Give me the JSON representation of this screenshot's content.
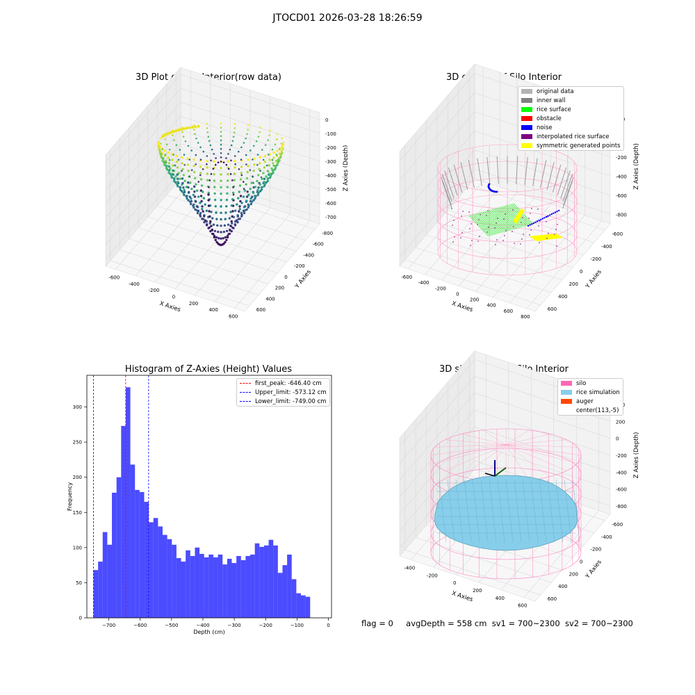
{
  "page_title": "JTOCD01 2026-03-28 18:26:59",
  "footer": {
    "flag": "flag = 0",
    "avg_depth": "avgDepth = 558 cm",
    "sv1": "sv1 = 700~2300",
    "sv2": "sv2 = 700~2300"
  },
  "chart_data": [
    {
      "type": "scatter",
      "title": "3D Plot of Silo Interior(row data)",
      "xlabel": "X Axies",
      "ylabel": "Y Axies",
      "zlabel": "Z Axies (Depth)",
      "x_ticks": [
        "-600",
        "-400",
        "-200",
        "0",
        "200",
        "400",
        "600"
      ],
      "y_ticks": [
        "-800",
        "-600",
        "-400",
        "-200",
        "0",
        "200",
        "400",
        "600"
      ],
      "z_ticks": [
        "0",
        "-100",
        "-200",
        "-300",
        "-400",
        "-500",
        "-600",
        "-700"
      ],
      "colormap": "viridis",
      "grid": true
    },
    {
      "type": "scatter",
      "title": "3D classify of Silo Interior",
      "xlabel": "X Axies",
      "ylabel": "Y Axies",
      "zlabel": "Z Axies (Depth)",
      "x_ticks": [
        "-600",
        "-400",
        "-200",
        "0",
        "200",
        "400",
        "600",
        "800"
      ],
      "y_ticks": [
        "-600",
        "-400",
        "-200",
        "0",
        "200",
        "400",
        "600"
      ],
      "z_ticks": [
        "200",
        "0",
        "-200",
        "-400",
        "-600",
        "-800"
      ],
      "legend_position": "top-right",
      "legend": [
        {
          "label": "original data",
          "color": "#b3b3b3"
        },
        {
          "label": "inner wall",
          "color": "#808080"
        },
        {
          "label": "rice surface",
          "color": "#00ff00"
        },
        {
          "label": "obstacle",
          "color": "#ff0000"
        },
        {
          "label": "noise",
          "color": "#0000ff"
        },
        {
          "label": "interpolated rice surface",
          "color": "#800080"
        },
        {
          "label": "symmetric generated points",
          "color": "#ffff00"
        }
      ],
      "grid": true
    },
    {
      "type": "bar",
      "title": "Histogram of Z-Axies (Height) Values",
      "xlabel": "Depth (cm)",
      "ylabel": "Frequency",
      "xlim": [
        -770,
        10
      ],
      "ylim": [
        0,
        345
      ],
      "x_ticks": [
        -700,
        -600,
        -500,
        -400,
        -300,
        -200,
        -100,
        0
      ],
      "y_ticks": [
        0,
        50,
        100,
        150,
        200,
        250,
        300
      ],
      "bar_color": "#0000ff",
      "bins": {
        "start": -749,
        "width": 14.7,
        "counts": [
          68,
          80,
          122,
          104,
          178,
          200,
          273,
          328,
          218,
          182,
          179,
          165,
          136,
          142,
          130,
          118,
          112,
          104,
          85,
          80,
          96,
          88,
          100,
          91,
          86,
          90,
          86,
          90,
          76,
          84,
          78,
          88,
          82,
          88,
          90,
          106,
          101,
          103,
          111,
          103,
          64,
          75,
          90,
          55,
          35,
          32,
          30
        ]
      },
      "lines": [
        {
          "label": "first_peak: -646.40 cm",
          "x": -646.4,
          "color": "#ff0000"
        },
        {
          "label": "Upper_limit: -573.12 cm",
          "x": -573.12,
          "color": "#0000ff"
        },
        {
          "label": "Lower_limit: -749.00 cm",
          "x": -749.0,
          "color": "#0000ff"
        }
      ],
      "legend_position": "top-right"
    },
    {
      "type": "area",
      "title": "3D simulation of Silo Interior",
      "xlabel": "X Axies",
      "ylabel": "Y Axies",
      "zlabel": "Z Axies (Depth)",
      "x_ticks": [
        "-400",
        "-200",
        "0",
        "200",
        "400",
        "600"
      ],
      "y_ticks": [
        "-600",
        "-400",
        "-200",
        "0",
        "200",
        "400",
        "600"
      ],
      "z_ticks": [
        "400",
        "200",
        "0",
        "-200",
        "-400",
        "-600",
        "-800"
      ],
      "legend_position": "top-right",
      "legend": [
        {
          "label": "silo",
          "color": "#ff69b4"
        },
        {
          "label": "rice simulation",
          "color": "#87ceeb"
        },
        {
          "label": "auger",
          "color": "#ff4500"
        },
        {
          "label": "center(113,-5)",
          "color": "#ffffff"
        }
      ],
      "grid": true
    }
  ]
}
